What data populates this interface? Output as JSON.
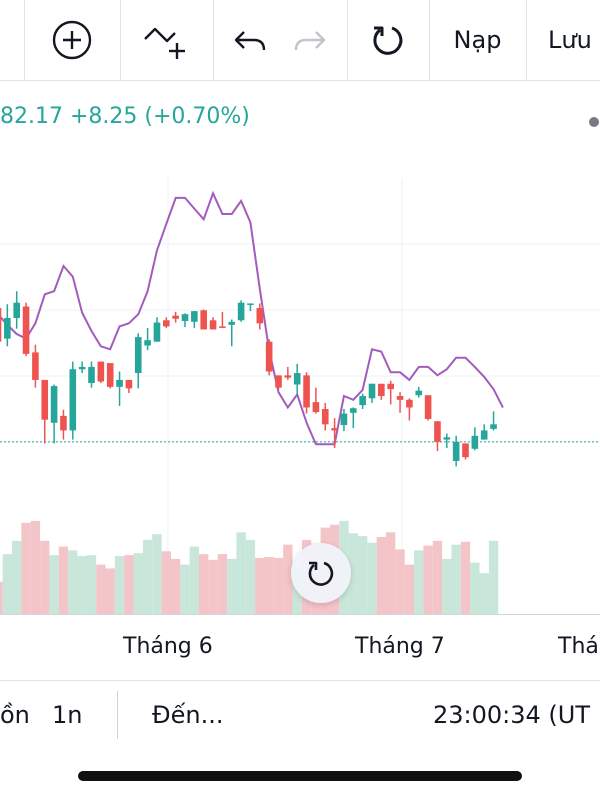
{
  "toolbar": {
    "add_icon": "plus-circle-icon",
    "indicator_icon": "add-indicator-icon",
    "undo_icon": "undo-icon",
    "redo_icon": "redo-icon",
    "refresh_icon": "refresh-icon",
    "load_label": "Nạp",
    "save_label": "Lưu"
  },
  "quote": {
    "text": "82.17 +8.25 (+0.70%)"
  },
  "chart_data": {
    "type": "candlestick",
    "x_labels": [
      "Tháng 6",
      "Tháng 7",
      "Thá"
    ],
    "series": [
      {
        "kind": "ohlc",
        "values": [
          [
            40.0,
            36.9,
            27.8,
            35.6
          ],
          [
            36.0,
            40.5,
            35.0,
            38.7
          ],
          [
            38.7,
            42.2,
            37.3,
            40.7
          ],
          [
            40.2,
            40.7,
            33.7,
            34.0
          ],
          [
            34.2,
            35.2,
            29.6,
            30.6
          ],
          [
            30.6,
            30.6,
            22.3,
            25.4
          ],
          [
            25.0,
            30.0,
            22.3,
            29.8
          ],
          [
            25.9,
            26.7,
            22.8,
            24.0
          ],
          [
            24.0,
            33.0,
            22.8,
            32.0
          ],
          [
            32.0,
            33.0,
            31.5,
            32.3
          ],
          [
            30.2,
            33.0,
            29.6,
            32.3
          ],
          [
            33.0,
            33.0,
            30.2,
            30.4
          ],
          [
            32.8,
            32.8,
            29.5,
            29.7
          ],
          [
            29.7,
            31.7,
            27.2,
            30.6
          ],
          [
            30.6,
            30.6,
            28.9,
            29.5
          ],
          [
            31.5,
            36.7,
            29.5,
            36.2
          ],
          [
            35.1,
            37.4,
            34.5,
            35.8
          ],
          [
            35.6,
            38.8,
            35.6,
            38.1
          ],
          [
            38.4,
            38.8,
            37.4,
            37.6
          ],
          [
            39.0,
            39.5,
            38.1,
            38.6
          ],
          [
            38.3,
            39.3,
            37.5,
            39.2
          ],
          [
            38.2,
            39.6,
            37.4,
            39.6
          ],
          [
            39.7,
            39.8,
            37.2,
            37.2
          ],
          [
            38.4,
            38.8,
            37.2,
            37.2
          ],
          [
            37.6,
            39.5,
            37.4,
            37.5
          ],
          [
            37.8,
            38.5,
            35.0,
            38.2
          ],
          [
            38.4,
            41.0,
            38.2,
            40.7
          ],
          [
            40.6,
            40.6,
            39.6,
            40.6
          ],
          [
            40.0,
            40.6,
            37.2,
            38.0
          ],
          [
            35.6,
            35.9,
            31.2,
            31.7
          ],
          [
            31.2,
            31.2,
            29.3,
            29.6
          ],
          [
            31.2,
            32.3,
            30.6,
            30.9
          ],
          [
            30.0,
            32.7,
            28.6,
            31.5
          ],
          [
            31.2,
            31.6,
            26.2,
            27.0
          ],
          [
            27.7,
            29.6,
            26.2,
            26.4
          ],
          [
            26.8,
            27.6,
            24.0,
            24.8
          ],
          [
            24.3,
            25.6,
            21.7,
            24.0
          ],
          [
            24.7,
            26.8,
            23.9,
            26.2
          ],
          [
            26.3,
            27.0,
            24.3,
            26.9
          ],
          [
            27.3,
            28.8,
            26.8,
            28.5
          ],
          [
            28.2,
            30.1,
            27.6,
            30.1
          ],
          [
            30.1,
            30.1,
            28.0,
            28.5
          ],
          [
            30.1,
            30.5,
            27.4,
            29.4
          ],
          [
            28.5,
            29.0,
            26.3,
            28.0
          ],
          [
            28.0,
            28.2,
            25.3,
            27.0
          ],
          [
            28.6,
            29.7,
            28.3,
            29.2
          ],
          [
            28.6,
            28.6,
            25.3,
            25.5
          ],
          [
            25.2,
            25.2,
            21.3,
            22.5
          ],
          [
            22.8,
            23.6,
            21.7,
            23.1
          ],
          [
            20.0,
            23.3,
            19.3,
            22.5
          ],
          [
            22.3,
            22.3,
            20.2,
            20.5
          ],
          [
            21.6,
            24.4,
            21.4,
            23.3
          ],
          [
            22.8,
            24.8,
            22.8,
            24.0
          ],
          [
            24.2,
            26.5,
            24.0,
            24.8
          ]
        ]
      }
    ],
    "overlay_line": [
      39.2,
      37.8,
      36.6,
      36.0,
      38.0,
      41.8,
      42.2,
      45.5,
      44.1,
      39.4,
      37.0,
      35.0,
      34.6,
      37.6,
      38.0,
      39.2,
      42.2,
      47.5,
      51.0,
      54.4,
      54.4,
      53.0,
      51.6,
      55.0,
      52.3,
      52.3,
      54.0,
      51.2,
      42.5,
      34.5,
      29.0,
      27.0,
      28.7,
      25.0,
      22.2,
      22.2,
      22.2,
      28.5,
      28.0,
      29.3,
      34.6,
      34.3,
      31.6,
      31.6,
      30.6,
      32.3,
      32.3,
      31.2,
      32.0,
      33.5,
      33.5,
      32.3,
      31.0,
      29.4,
      27.0
    ],
    "volume": [
      0.34,
      0.63,
      0.77,
      0.96,
      0.98,
      0.77,
      0.62,
      0.71,
      0.67,
      0.61,
      0.62,
      0.52,
      0.48,
      0.61,
      0.62,
      0.64,
      0.78,
      0.84,
      0.66,
      0.58,
      0.52,
      0.71,
      0.63,
      0.57,
      0.63,
      0.58,
      0.86,
      0.78,
      0.59,
      0.6,
      0.59,
      0.73,
      0.5,
      0.78,
      0.74,
      0.91,
      0.94,
      0.98,
      0.85,
      0.82,
      0.75,
      0.81,
      0.86,
      0.68,
      0.52,
      0.67,
      0.72,
      0.77,
      0.58,
      0.73,
      0.76,
      0.54,
      0.43,
      0.77
    ],
    "last_price_line": 22.5,
    "colors": {
      "up": "#26a69a",
      "down": "#ef5350",
      "up_volume": "#c8e6d9",
      "down_volume": "#f3c4c8",
      "overlay": "#a35bbd",
      "grid": "#eef0f5"
    }
  },
  "bottombar": {
    "range_partial": "ồn",
    "interval": "1n",
    "goto_label": "Đến...",
    "clock": "23:00:34 (UT"
  }
}
